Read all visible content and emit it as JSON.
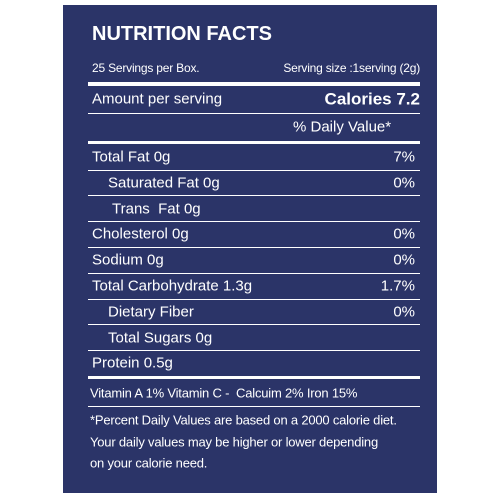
{
  "header": {
    "title": "NUTRITION FACTS",
    "servings": "25 Servings per Box.",
    "serving_size": "Serving size :1serving (2g)"
  },
  "amount": {
    "label": "Amount per serving",
    "calories": "Calories 7.2",
    "daily_value_header": "% Daily Value*"
  },
  "rows": [
    {
      "label": "Total Fat 0g",
      "value": "7%"
    },
    {
      "label": "Saturated Fat 0g",
      "value": "0%"
    },
    {
      "label": "Trans  Fat 0g"
    },
    {
      "label": "Cholesterol 0g",
      "value": "0%"
    },
    {
      "label": "Sodium 0g",
      "value": "0%"
    },
    {
      "label": "Total Carbohydrate 1.3g",
      "value": "1.7%"
    },
    {
      "label": "Dietary Fiber",
      "value": "0%"
    },
    {
      "label": "Total Sugars 0g"
    },
    {
      "label": "Protein 0.5g"
    }
  ],
  "vitamins": "Vitamin A 1% Vitamin C -  Calcuim 2% Iron 15%",
  "footnote": [
    "*Percent Daily Values are based on a 2000 calorie diet.",
    "Your daily values may be higher or lower depending",
    "on your calorie need."
  ]
}
